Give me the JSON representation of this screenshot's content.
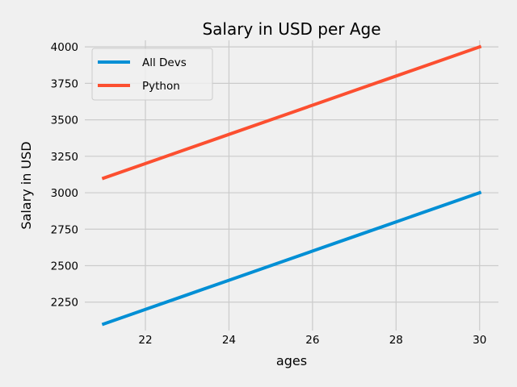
{
  "chart_data": {
    "type": "line",
    "title": "Salary in USD per Age",
    "xlabel": "ages",
    "ylabel": "Salary in USD",
    "x": [
      21,
      22,
      23,
      24,
      25,
      26,
      27,
      28,
      29,
      30
    ],
    "series": [
      {
        "name": "All Devs",
        "color": "#008fd5",
        "values": [
          2100,
          2200,
          2300,
          2400,
          2500,
          2600,
          2700,
          2800,
          2900,
          3000
        ]
      },
      {
        "name": "Python",
        "color": "#fc4f30",
        "values": [
          3100,
          3200,
          3300,
          3400,
          3500,
          3600,
          3700,
          3800,
          3900,
          4000
        ]
      }
    ],
    "xticks": [
      22,
      24,
      26,
      28,
      30
    ],
    "yticks": [
      2250,
      2500,
      2750,
      3000,
      3250,
      3500,
      3750,
      4000
    ],
    "xlim": [
      20.55,
      30.45
    ],
    "ylim": [
      2055,
      4045
    ],
    "grid": true,
    "legend_position": "top-left",
    "background": "#f0f0f0"
  }
}
